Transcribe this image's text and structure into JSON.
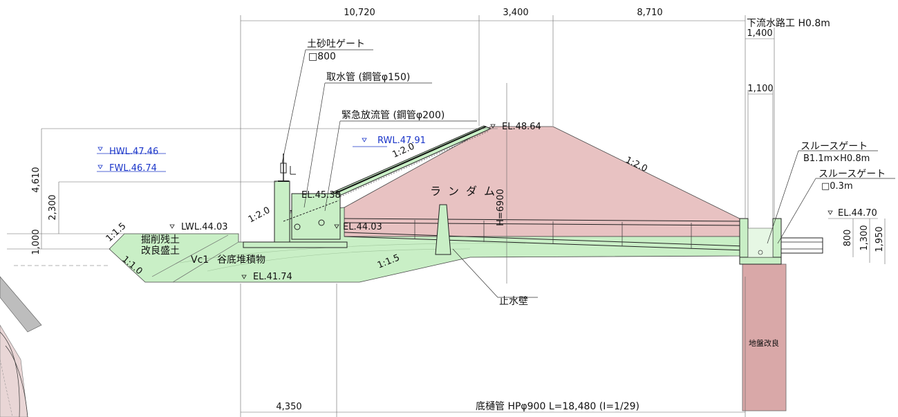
{
  "dimensions": {
    "top_left": "10,720",
    "top_mid": "3,400",
    "top_right": "8,710",
    "channel_width": "1,400",
    "inner_width": "1,100",
    "left_height": "4,610",
    "left_mid": "2,300",
    "left_low": "1,000",
    "right_small": "800",
    "right_mid": "1,300",
    "right_total": "1,950",
    "bottom_left": "4,350",
    "dam_height": "H=6900"
  },
  "labels": {
    "downstream_channel": "下流水路工 H0.8m",
    "sediment_gate": "土砂吐ゲート",
    "sediment_gate_size": "□800",
    "intake_pipe": "取水管 (鋼管φ150)",
    "emergency_pipe": "緊急放流管 (鋼管φ200)",
    "crest_el": "EL.48.64",
    "rwl": "RWL.47.91",
    "hwl": "HWL.47.46",
    "fwl": "FWL.46.74",
    "lwl": "LWL.44.03",
    "el_45": "EL.45.38",
    "el_44_03": "EL.44.03",
    "el_41_74": "EL.41.74",
    "el_44_70": "EL.44.70",
    "slope_up_1": "1:2.0",
    "slope_up_2": "1:2.0",
    "slope_down": "1:2.0",
    "slope_15_left": "1:1.5",
    "slope_10": "1:1.0",
    "slope_15_right": "1:1.5",
    "random_dam": "ランダム",
    "excavated_soil": "掘削残土",
    "improved_fill": "改良盛土",
    "vc1": "Vc1",
    "valley_deposits": "谷底堆積物",
    "cutoff_wall": "止水壁",
    "sluice_gate_1": "スルースゲート",
    "sluice_gate_1_size": "B1.1m×H0.8m",
    "sluice_gate_2": "スルースゲート",
    "sluice_gate_2_size": "□0.3m",
    "ground_improvement": "地盤改良",
    "bottom_pipe": "底樋管 HPφ900 L=18,480 (I=1/29)"
  },
  "colors": {
    "dam_fill": "#e8c2c2",
    "green_fill": "#c9efc6",
    "ground_improvement_fill": "#d9a8a8",
    "water_level_text": "#1a35c9"
  }
}
